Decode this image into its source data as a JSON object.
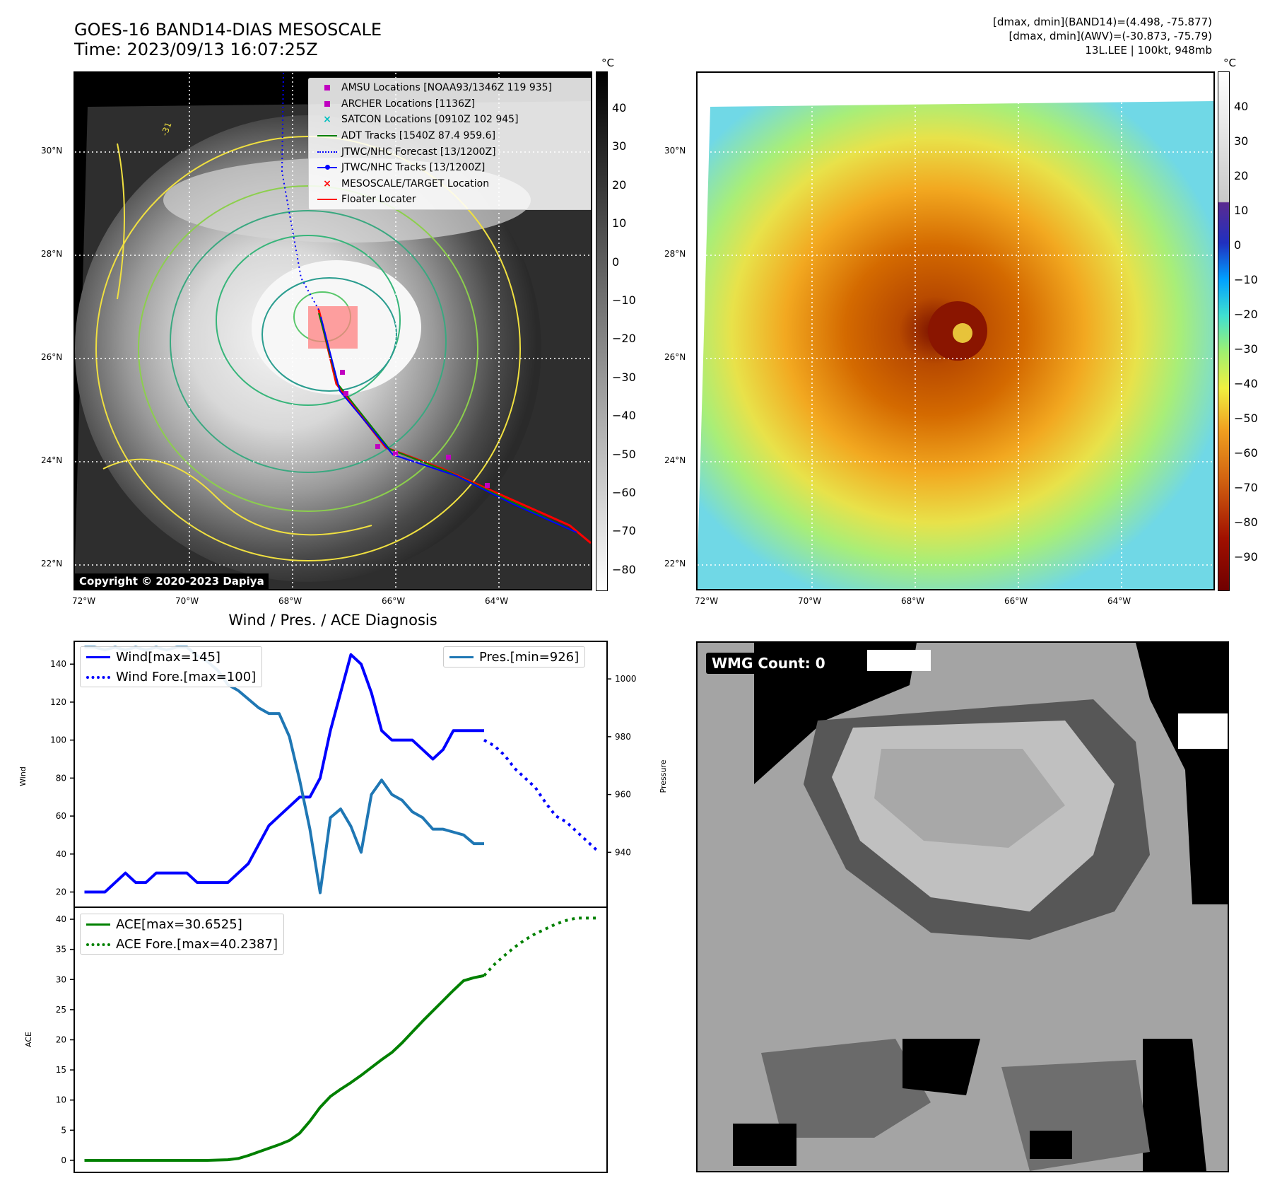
{
  "header": {
    "title_line1": "GOES-16 BAND14-DIAS MESOSCALE",
    "title_line2": "Time: 2023/09/13 16:07:25Z",
    "info_line1": "[dmax, dmin](BAND14)=(4.498, -75.877)",
    "info_line2": "[dmax, dmin](AWV)=(-30.873, -75.79)",
    "info_line3": "13L.LEE | 100kt, 948mb"
  },
  "map": {
    "lat_labels": [
      "30°N",
      "28°N",
      "26°N",
      "24°N",
      "22°N"
    ],
    "lon_labels": [
      "72°W",
      "70°W",
      "68°W",
      "66°W",
      "64°W"
    ],
    "copyright": "Copyright © 2020-2023 Dapiya",
    "colorbar_unit": "°C",
    "ir_colorbar_ticks": [
      "40",
      "30",
      "20",
      "10",
      "0",
      "−10",
      "−20",
      "−30",
      "−40",
      "−50",
      "−60",
      "−70",
      "−80"
    ],
    "enh_colorbar_ticks": [
      "40",
      "30",
      "20",
      "10",
      "0",
      "−10",
      "−20",
      "−30",
      "−40",
      "−50",
      "−60",
      "−70",
      "−80",
      "−90"
    ],
    "contour_label": "-31",
    "legend": [
      {
        "label": "AMSU Locations [NOAA93/1346Z 119 935]",
        "symbol": "square",
        "color": "#c000c0"
      },
      {
        "label": "ARCHER Locations [1136Z]",
        "symbol": "square",
        "color": "#c000c0"
      },
      {
        "label": "SATCON Locations [0910Z 102 945]",
        "symbol": "x",
        "color": "#00bfbf"
      },
      {
        "label": "ADT Tracks [1540Z 87.4 959.6]",
        "symbol": "line",
        "color": "#008000"
      },
      {
        "label": "JTWC/NHC Forecast [13/1200Z]",
        "symbol": "dotted",
        "color": "#0000ff"
      },
      {
        "label": "JTWC/NHC Tracks [13/1200Z]",
        "symbol": "line-dot",
        "color": "#0000ff"
      },
      {
        "label": "MESOSCALE/TARGET Location",
        "symbol": "x",
        "color": "#ff0000"
      },
      {
        "label": "Floater Locater",
        "symbol": "line",
        "color": "#ff0000"
      }
    ]
  },
  "diagnosis": {
    "title": "Wind / Pres. / ACE Diagnosis",
    "wind_ylabel": "Wind",
    "pres_ylabel": "Pressure",
    "ace_ylabel": "ACE",
    "legend_wind": "Wind[max=145]",
    "legend_wind_fore": "Wind Fore.[max=100]",
    "legend_pres": "Pres.[min=926]",
    "legend_ace": "ACE[max=30.6525]",
    "legend_ace_fore": "ACE Fore.[max=40.2387]"
  },
  "wmg": {
    "label": "WMG Count: 0"
  },
  "chart_data": [
    {
      "type": "line",
      "panel": "wind",
      "ylim": [
        12,
        152
      ],
      "yticks": [
        20,
        40,
        60,
        80,
        100,
        120,
        140
      ],
      "xlim": [
        -1,
        51
      ],
      "series": [
        {
          "name": "Wind[max=145]",
          "color": "#0000ff",
          "style": "solid",
          "x": [
            0,
            1,
            2,
            3,
            4,
            5,
            6,
            7,
            8,
            9,
            10,
            11,
            12,
            13,
            14,
            15,
            16,
            17,
            18,
            19,
            20,
            21,
            22,
            23,
            24,
            25,
            26,
            27,
            28,
            29,
            30,
            31,
            32,
            33,
            34,
            35,
            36,
            37,
            38,
            39
          ],
          "y": [
            20,
            20,
            20,
            25,
            30,
            25,
            25,
            30,
            30,
            30,
            30,
            25,
            25,
            25,
            25,
            30,
            35,
            45,
            55,
            60,
            65,
            70,
            70,
            80,
            105,
            125,
            145,
            140,
            125,
            105,
            100,
            100,
            100,
            95,
            90,
            95,
            105,
            105,
            105,
            105
          ]
        },
        {
          "name": "Wind Fore.[max=100]",
          "color": "#0000ff",
          "style": "dotted",
          "x": [
            39,
            40,
            41,
            42,
            43,
            44,
            45,
            46,
            47,
            48,
            49,
            50
          ],
          "y": [
            100,
            97,
            92,
            85,
            80,
            75,
            67,
            60,
            57,
            52,
            47,
            42
          ]
        }
      ]
    },
    {
      "type": "line",
      "panel": "pressure",
      "ylim": [
        921,
        1013
      ],
      "yticks": [
        940,
        960,
        980,
        1000
      ],
      "series": [
        {
          "name": "Pres.[min=926]",
          "color": "#1f77b4",
          "style": "solid",
          "x": [
            0,
            1,
            2,
            3,
            4,
            5,
            6,
            7,
            8,
            9,
            10,
            11,
            12,
            13,
            14,
            15,
            16,
            17,
            18,
            19,
            20,
            21,
            22,
            23,
            24,
            25,
            26,
            27,
            28,
            29,
            30,
            31,
            32,
            33,
            34,
            35,
            36,
            37,
            38,
            39
          ],
          "y": [
            1011,
            1011,
            1010,
            1011,
            1010,
            1011,
            1010,
            1011,
            1010,
            1011,
            1011,
            1008,
            1006,
            1003,
            998,
            996,
            993,
            990,
            988,
            988,
            980,
            965,
            948,
            926,
            952,
            955,
            949,
            940,
            960,
            965,
            960,
            958,
            954,
            952,
            948,
            948,
            947,
            946,
            943,
            943
          ]
        }
      ]
    },
    {
      "type": "line",
      "panel": "ace",
      "ylim": [
        -2,
        42
      ],
      "yticks": [
        0,
        5,
        10,
        15,
        20,
        25,
        30,
        35,
        40
      ],
      "series": [
        {
          "name": "ACE[max=30.6525]",
          "color": "#008000",
          "style": "solid",
          "x": [
            0,
            2,
            4,
            6,
            8,
            10,
            12,
            14,
            15,
            16,
            17,
            18,
            19,
            20,
            21,
            22,
            23,
            24,
            25,
            26,
            27,
            28,
            29,
            30,
            31,
            32,
            33,
            34,
            35,
            36,
            37,
            38,
            39
          ],
          "y": [
            0,
            0,
            0,
            0,
            0,
            0,
            0,
            0.1,
            0.3,
            0.8,
            1.4,
            2,
            2.6,
            3.3,
            4.5,
            6.5,
            8.8,
            10.6,
            11.8,
            12.9,
            14.1,
            15.4,
            16.7,
            17.9,
            19.5,
            21.3,
            23.1,
            24.8,
            26.5,
            28.2,
            29.8,
            30.3,
            30.65
          ]
        },
        {
          "name": "ACE Fore.[max=40.2387]",
          "color": "#008000",
          "style": "dotted",
          "x": [
            39,
            40,
            41,
            42,
            43,
            44,
            45,
            46,
            47,
            48,
            49,
            50
          ],
          "y": [
            30.65,
            32.5,
            34,
            35.4,
            36.6,
            37.6,
            38.4,
            39.2,
            39.8,
            40.2,
            40.2,
            40.2
          ]
        }
      ]
    }
  ]
}
